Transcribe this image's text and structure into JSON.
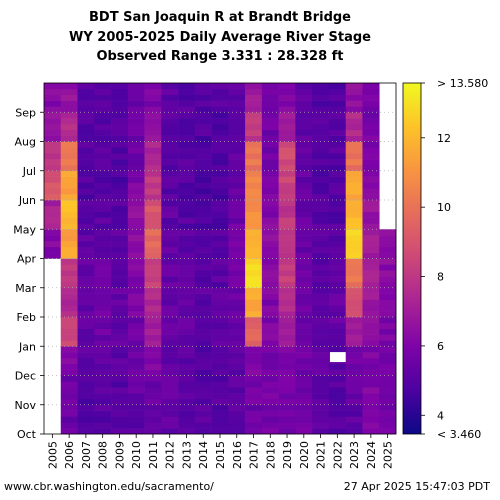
{
  "chart_data": {
    "type": "heatmap",
    "title_lines": [
      "BDT San Joaquin R at Brandt Bridge",
      "WY 2005-2025 Daily Average River Stage",
      "Observed Range 3.331 : 28.328 ft"
    ],
    "xlabel": "",
    "ylabel": "",
    "x_categories": [
      "2005",
      "2006",
      "2007",
      "2008",
      "2009",
      "2010",
      "2011",
      "2012",
      "2013",
      "2014",
      "2015",
      "2016",
      "2017",
      "2018",
      "2019",
      "2020",
      "2021",
      "2022",
      "2023",
      "2024",
      "2025"
    ],
    "y_categories": [
      "Oct",
      "Nov",
      "Dec",
      "Jan",
      "Feb",
      "Mar",
      "Apr",
      "May",
      "Jun",
      "Jul",
      "Aug",
      "Sep"
    ],
    "colorbar": {
      "min": 3.46,
      "max": 13.58,
      "min_label": "< 3.460",
      "max_label": "> 13.580",
      "ticks": [
        "4",
        "6",
        "8",
        "10",
        "12"
      ],
      "tick_values": [
        4,
        6,
        8,
        10,
        12
      ],
      "colormap": "plasma"
    },
    "missing_cells": [
      {
        "water_year": "2005",
        "months": "Oct-Mar"
      },
      {
        "water_year": "2025",
        "months": "May-Sep"
      },
      {
        "water_year": "2022",
        "months": "Dec (partial)"
      }
    ],
    "monthly_stage_ft": {
      "2005": [
        null,
        null,
        null,
        null,
        null,
        null,
        6.2,
        7.2,
        9.0,
        8.0,
        6.6,
        6.2
      ],
      "2006": [
        5.5,
        5.6,
        6.2,
        8.5,
        7.5,
        8.0,
        11.5,
        12.0,
        11.5,
        10.0,
        7.5,
        6.5
      ],
      "2007": [
        5.0,
        5.0,
        5.1,
        5.4,
        5.4,
        5.3,
        5.2,
        5.0,
        4.9,
        5.0,
        5.0,
        5.0
      ],
      "2008": [
        5.0,
        5.1,
        5.2,
        5.5,
        5.6,
        5.4,
        5.2,
        5.1,
        5.0,
        5.0,
        5.0,
        5.1
      ],
      "2009": [
        5.0,
        5.0,
        5.1,
        5.2,
        5.3,
        5.2,
        5.2,
        5.0,
        4.9,
        4.9,
        5.0,
        5.0
      ],
      "2010": [
        5.2,
        5.3,
        5.4,
        5.6,
        5.9,
        6.0,
        6.4,
        6.4,
        6.0,
        5.6,
        5.4,
        5.3
      ],
      "2011": [
        5.4,
        5.6,
        6.2,
        7.0,
        7.5,
        8.2,
        9.8,
        9.0,
        8.0,
        7.4,
        6.6,
        6.0
      ],
      "2012": [
        5.4,
        5.4,
        5.4,
        5.5,
        5.4,
        5.4,
        5.3,
        5.2,
        5.1,
        5.1,
        5.1,
        5.2
      ],
      "2013": [
        5.2,
        5.2,
        5.2,
        5.3,
        5.3,
        5.2,
        5.1,
        5.0,
        5.0,
        5.0,
        5.0,
        5.0
      ],
      "2014": [
        5.0,
        5.0,
        5.0,
        5.0,
        5.1,
        5.1,
        5.0,
        4.9,
        4.8,
        4.9,
        4.9,
        5.0
      ],
      "2015": [
        5.0,
        5.0,
        5.1,
        5.1,
        5.1,
        5.1,
        5.0,
        4.9,
        4.8,
        4.8,
        4.9,
        5.0
      ],
      "2016": [
        5.0,
        5.1,
        5.2,
        5.4,
        5.5,
        5.6,
        5.7,
        5.6,
        5.4,
        5.2,
        5.2,
        5.1
      ],
      "2017": [
        5.5,
        5.8,
        6.2,
        9.5,
        11.5,
        13.0,
        12.0,
        11.0,
        10.5,
        10.0,
        8.0,
        6.8
      ],
      "2018": [
        5.8,
        5.8,
        5.8,
        6.0,
        6.0,
        6.2,
        6.5,
        6.2,
        5.9,
        5.7,
        5.6,
        5.6
      ],
      "2019": [
        5.6,
        5.8,
        6.0,
        6.8,
        7.6,
        8.2,
        8.0,
        8.0,
        8.4,
        8.6,
        7.0,
        6.2
      ],
      "2020": [
        5.6,
        5.6,
        5.6,
        5.7,
        5.7,
        5.6,
        5.5,
        5.4,
        5.3,
        5.3,
        5.3,
        5.3
      ],
      "2021": [
        5.3,
        5.3,
        5.3,
        5.3,
        5.3,
        5.2,
        5.2,
        5.1,
        5.0,
        5.0,
        5.0,
        5.0
      ],
      "2022": [
        5.0,
        5.0,
        5.2,
        5.4,
        5.3,
        5.2,
        5.1,
        5.0,
        5.0,
        5.0,
        5.0,
        5.0
      ],
      "2023": [
        5.2,
        5.4,
        5.6,
        6.8,
        8.8,
        10.2,
        12.8,
        12.0,
        11.5,
        10.0,
        7.4,
        6.4
      ],
      "2024": [
        6.0,
        6.0,
        6.0,
        6.3,
        6.8,
        7.4,
        7.0,
        6.6,
        6.2,
        6.0,
        5.8,
        5.8
      ],
      "2025": [
        5.7,
        5.7,
        5.9,
        6.0,
        6.2,
        6.3,
        6.2,
        null,
        null,
        null,
        null,
        null
      ]
    }
  },
  "footer": {
    "source": "www.cbr.washington.edu/sacramento/",
    "timestamp": "27 Apr 2025 15:47:03 PDT"
  }
}
